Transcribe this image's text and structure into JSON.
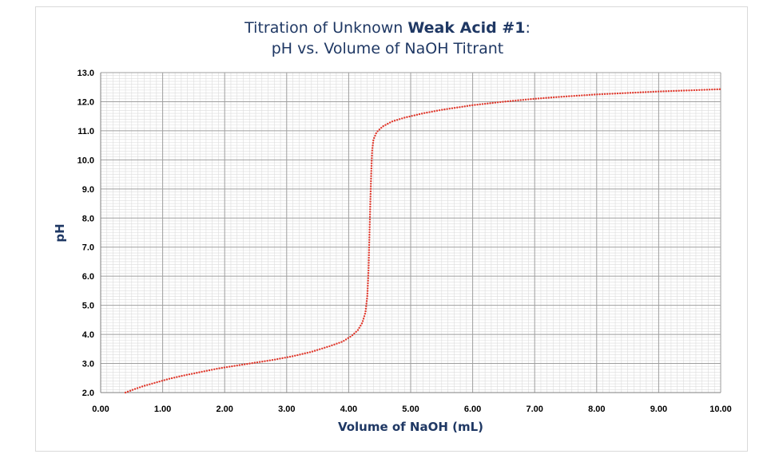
{
  "chart_data": {
    "type": "line",
    "title_line1_prefix": "Titration of Unknown ",
    "title_line1_bold": "Weak Acid #1",
    "title_line1_suffix": ":",
    "title_line2": "pH vs. Volume of NaOH Titrant",
    "xlabel": "Volume of NaOH (mL)",
    "ylabel": "pH",
    "xlim": [
      0,
      10
    ],
    "ylim": [
      2,
      13
    ],
    "x_ticks": [
      "0.00",
      "1.00",
      "2.00",
      "3.00",
      "4.00",
      "5.00",
      "6.00",
      "7.00",
      "8.00",
      "9.00",
      "10.00"
    ],
    "y_ticks": [
      "2.0",
      "3.0",
      "4.0",
      "5.0",
      "6.0",
      "7.0",
      "8.0",
      "9.0",
      "10.0",
      "11.0",
      "12.0",
      "13.0"
    ],
    "grid": true,
    "series_color": "#e03a2e",
    "x": [
      0.4,
      0.55,
      0.7,
      0.9,
      1.1,
      1.3,
      1.6,
      1.9,
      2.2,
      2.5,
      2.8,
      3.1,
      3.4,
      3.7,
      3.9,
      4.05,
      4.15,
      4.22,
      4.27,
      4.3,
      4.32,
      4.33,
      4.34,
      4.35,
      4.36,
      4.37,
      4.38,
      4.4,
      4.45,
      4.55,
      4.7,
      4.9,
      5.2,
      5.5,
      6.0,
      6.5,
      7.0,
      7.5,
      8.0,
      8.5,
      9.0,
      9.5,
      10.0
    ],
    "y": [
      2.0,
      2.12,
      2.23,
      2.35,
      2.47,
      2.57,
      2.7,
      2.83,
      2.93,
      3.03,
      3.13,
      3.25,
      3.4,
      3.6,
      3.75,
      3.95,
      4.15,
      4.4,
      4.75,
      5.3,
      6.2,
      7.0,
      7.8,
      8.6,
      9.3,
      9.9,
      10.35,
      10.7,
      10.95,
      11.15,
      11.32,
      11.45,
      11.6,
      11.72,
      11.88,
      12.0,
      12.1,
      12.18,
      12.25,
      12.3,
      12.35,
      12.39,
      12.43
    ]
  }
}
